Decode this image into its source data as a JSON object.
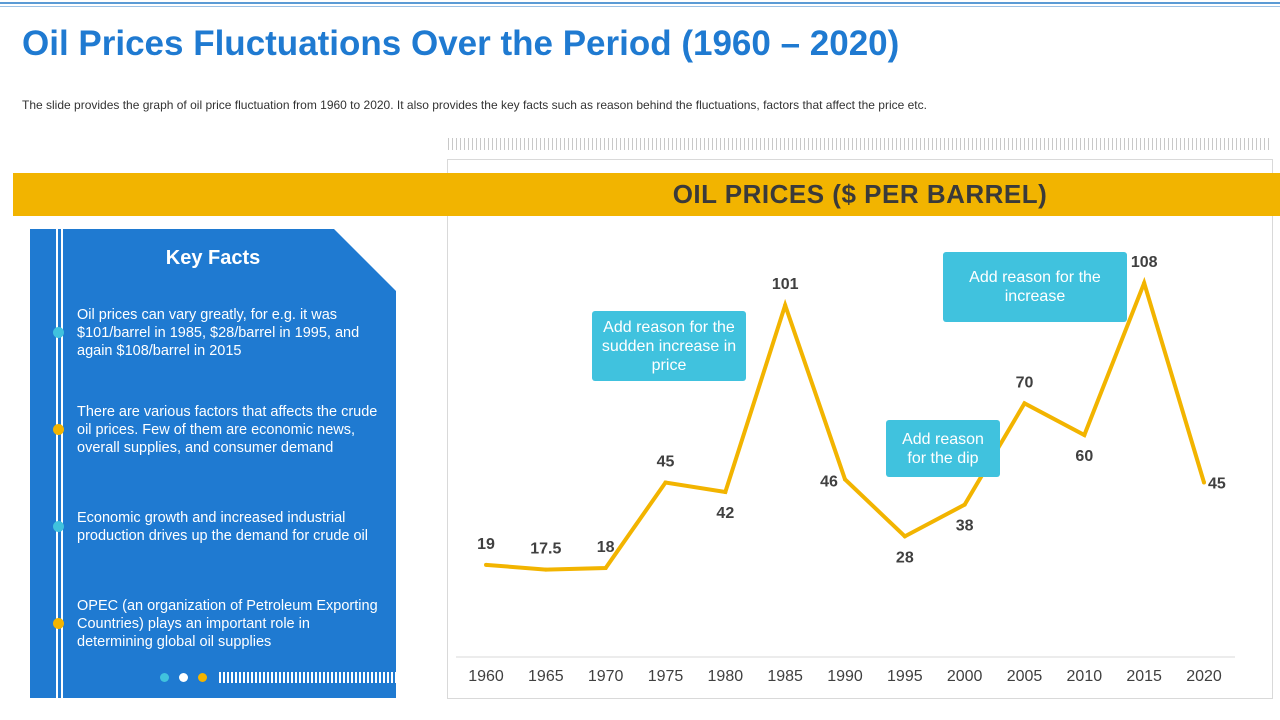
{
  "header": {
    "title": "Oil Prices Fluctuations Over the Period (1960 – 2020)",
    "subtitle": "The slide provides  the graph  of oil price fluctuation from 1960 to 2020. It also provides the key facts such as reason behind the fluctuations, factors that affect the price etc."
  },
  "key_facts": {
    "heading": "Key Facts",
    "items": [
      "Oil prices can vary greatly, for e.g. it was $101/barrel in 1985, $28/barrel in 1995, and again $108/barrel in 2015",
      "There are various factors that affects the crude oil prices. Few of them are economic news, overall supplies, and consumer demand",
      "Economic growth and increased industrial production drives up the demand for crude oil",
      "OPEC (an organization of Petroleum Exporting Countries) plays an important role in determining global oil supplies"
    ],
    "dot_colors": [
      "#40c2de",
      "#f2b400",
      "#40c2de",
      "#f2b400"
    ],
    "pager_colors": [
      "#40c2de",
      "#ffffff",
      "#f2b400"
    ]
  },
  "callouts": {
    "sudden_increase": "Add reason for the sudden increase in price",
    "dip": "Add reason for the dip",
    "increase": "Add reason for the increase"
  },
  "colors": {
    "title": "#1f7ad1",
    "band": "#f2b400",
    "line": "#f2b400",
    "callout": "#40c2de",
    "panel": "#1f7ad1"
  },
  "chart_data": {
    "type": "line",
    "title": "OIL PRICES ($ PER BARREL)",
    "xlabel": "",
    "ylabel": "",
    "categories": [
      "1960",
      "1965",
      "1970",
      "1975",
      "1980",
      "1985",
      "1990",
      "1995",
      "2000",
      "2005",
      "2010",
      "2015",
      "2020"
    ],
    "series": [
      {
        "name": "Oil Price ($ per barrel)",
        "values": [
          19,
          17.5,
          18,
          45,
          42,
          101,
          46,
          28,
          38,
          70,
          60,
          108,
          45
        ],
        "labels": [
          "19",
          "17.5",
          "18",
          "45",
          "42",
          "101",
          "46",
          "28",
          "38",
          "70",
          "60",
          "108",
          "45"
        ]
      }
    ],
    "ylim": [
      0,
      120
    ],
    "grid": false,
    "legend": "none"
  }
}
